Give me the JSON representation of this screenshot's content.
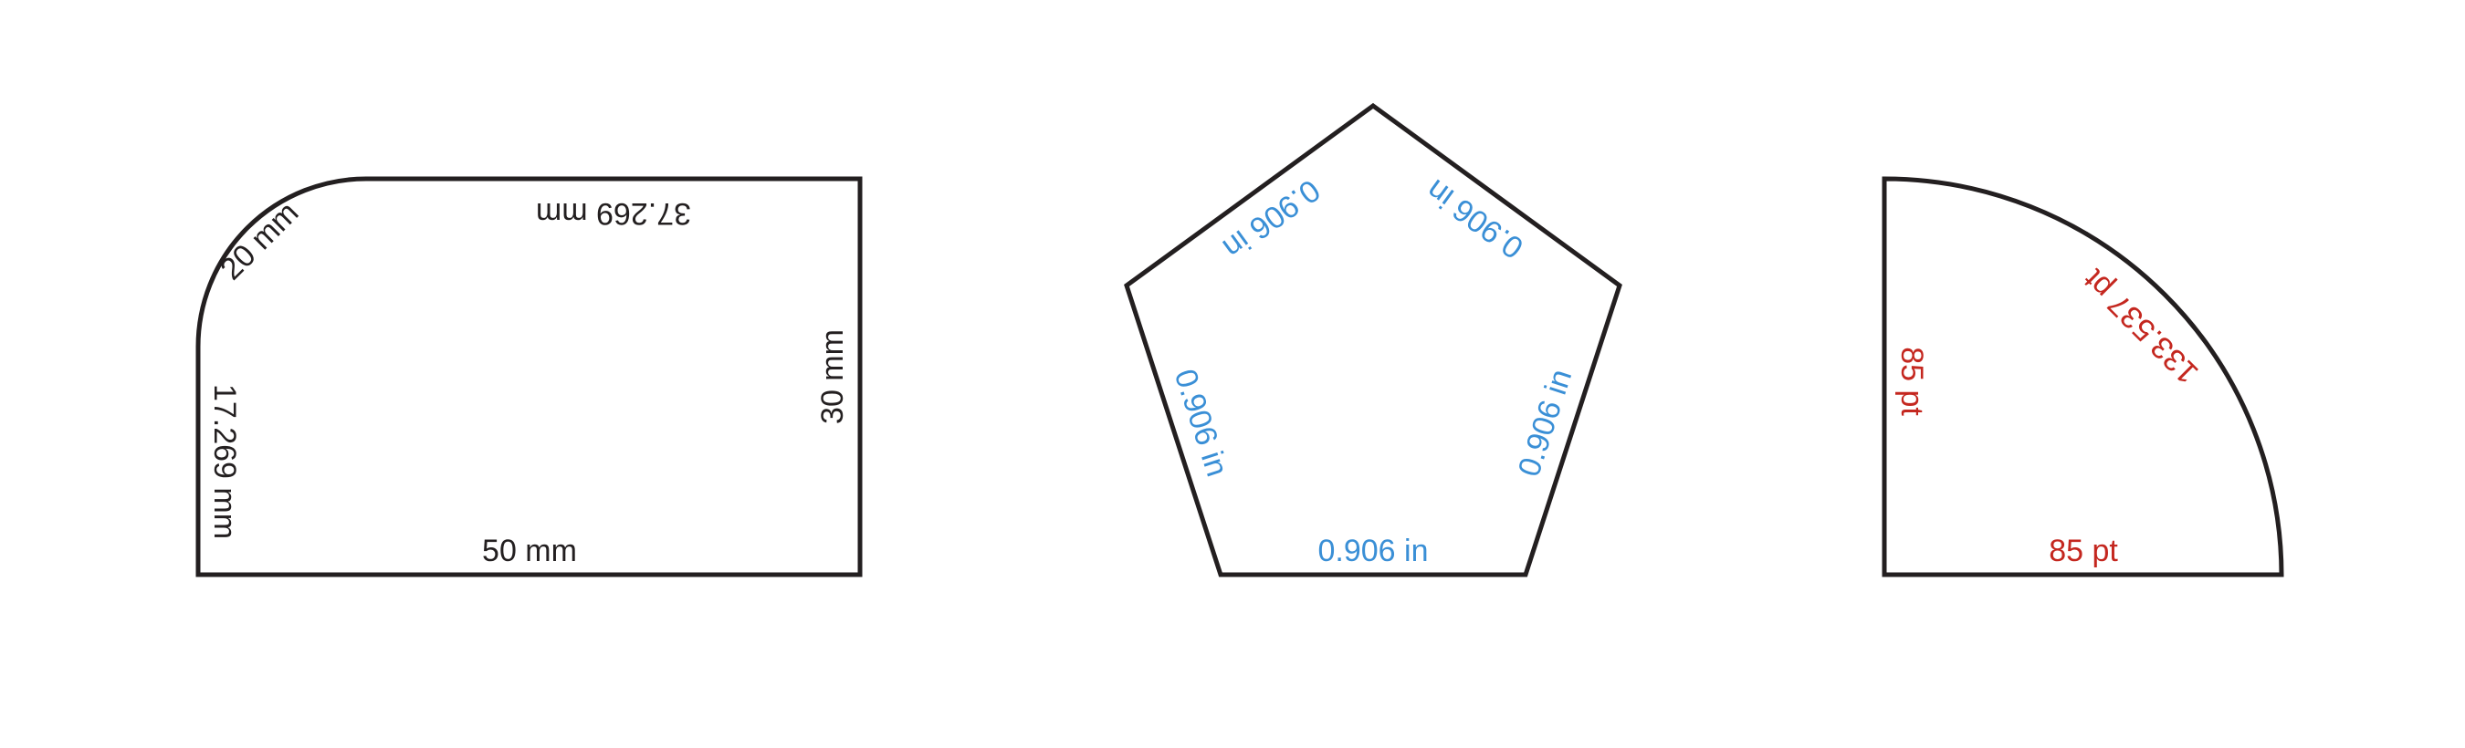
{
  "colors": {
    "outline": "#231f20",
    "shape1_text": "#231f20",
    "shape2_text": "#3a8fd6",
    "shape3_text": "#c4271f"
  },
  "shape1": {
    "kind": "rounded-corner rectangle",
    "labels": {
      "arc": "20 mm",
      "top": "37.269 mm",
      "right": "30 mm",
      "bottom": "50 mm",
      "left": "17.269 mm"
    }
  },
  "shape2": {
    "kind": "regular pentagon",
    "labels": {
      "upper_left": "0.906 in",
      "upper_right": "0.906 in",
      "lower_left": "0.906 in",
      "lower_right": "0.906 in",
      "bottom": "0.906 in"
    }
  },
  "shape3": {
    "kind": "quarter circle",
    "labels": {
      "left": "85 pt",
      "bottom": "85 pt",
      "arc": "133.537 pt"
    }
  }
}
